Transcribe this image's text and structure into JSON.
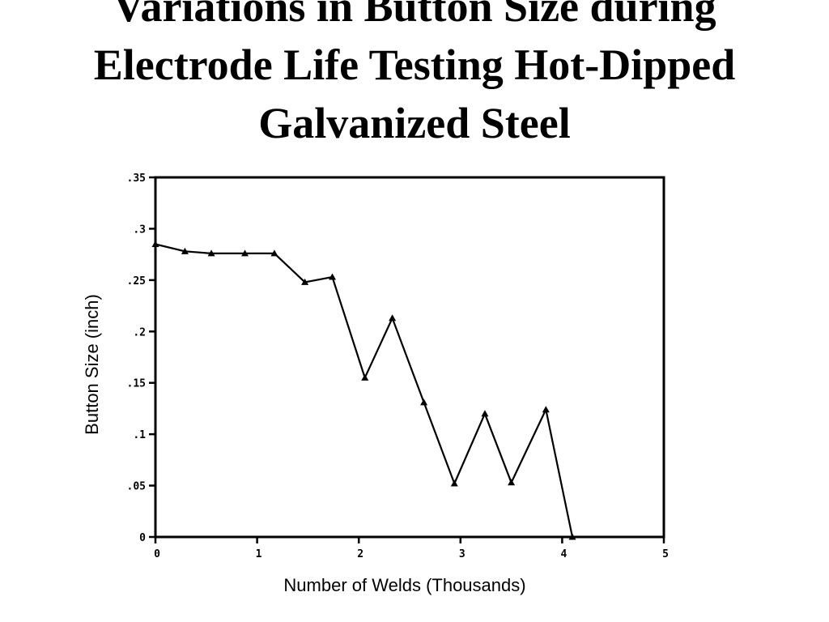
{
  "chart_data": {
    "type": "line",
    "title_lines": [
      "Variations in Button Size during",
      "Electrode Life Testing Hot-Dipped",
      "Galvanized Steel"
    ],
    "xlabel": "Number of Welds (Thousands)",
    "ylabel": "Button Size (inch)",
    "xlim": [
      0,
      5
    ],
    "ylim": [
      0,
      0.35
    ],
    "x_ticks": [
      0,
      1,
      2,
      3,
      4,
      5
    ],
    "x_tick_labels": [
      "0",
      "1",
      "2",
      "3",
      "4",
      "5"
    ],
    "y_ticks": [
      0,
      0.05,
      0.1,
      0.15,
      0.2,
      0.25,
      0.3,
      0.35
    ],
    "y_tick_labels": [
      "0",
      ".05",
      ".1",
      ".15",
      ".2",
      ".25",
      ".3",
      ".35"
    ],
    "grid": false,
    "series": [
      {
        "marker": "triangle",
        "x": [
          0,
          0.29,
          0.55,
          0.88,
          1.17,
          1.47,
          1.74,
          2.06,
          2.33,
          2.64,
          2.94,
          3.24,
          3.5,
          3.84,
          4.1
        ],
        "y": [
          0.285,
          0.278,
          0.276,
          0.276,
          0.276,
          0.248,
          0.253,
          0.155,
          0.213,
          0.131,
          0.052,
          0.12,
          0.053,
          0.124,
          0.0
        ]
      }
    ]
  }
}
